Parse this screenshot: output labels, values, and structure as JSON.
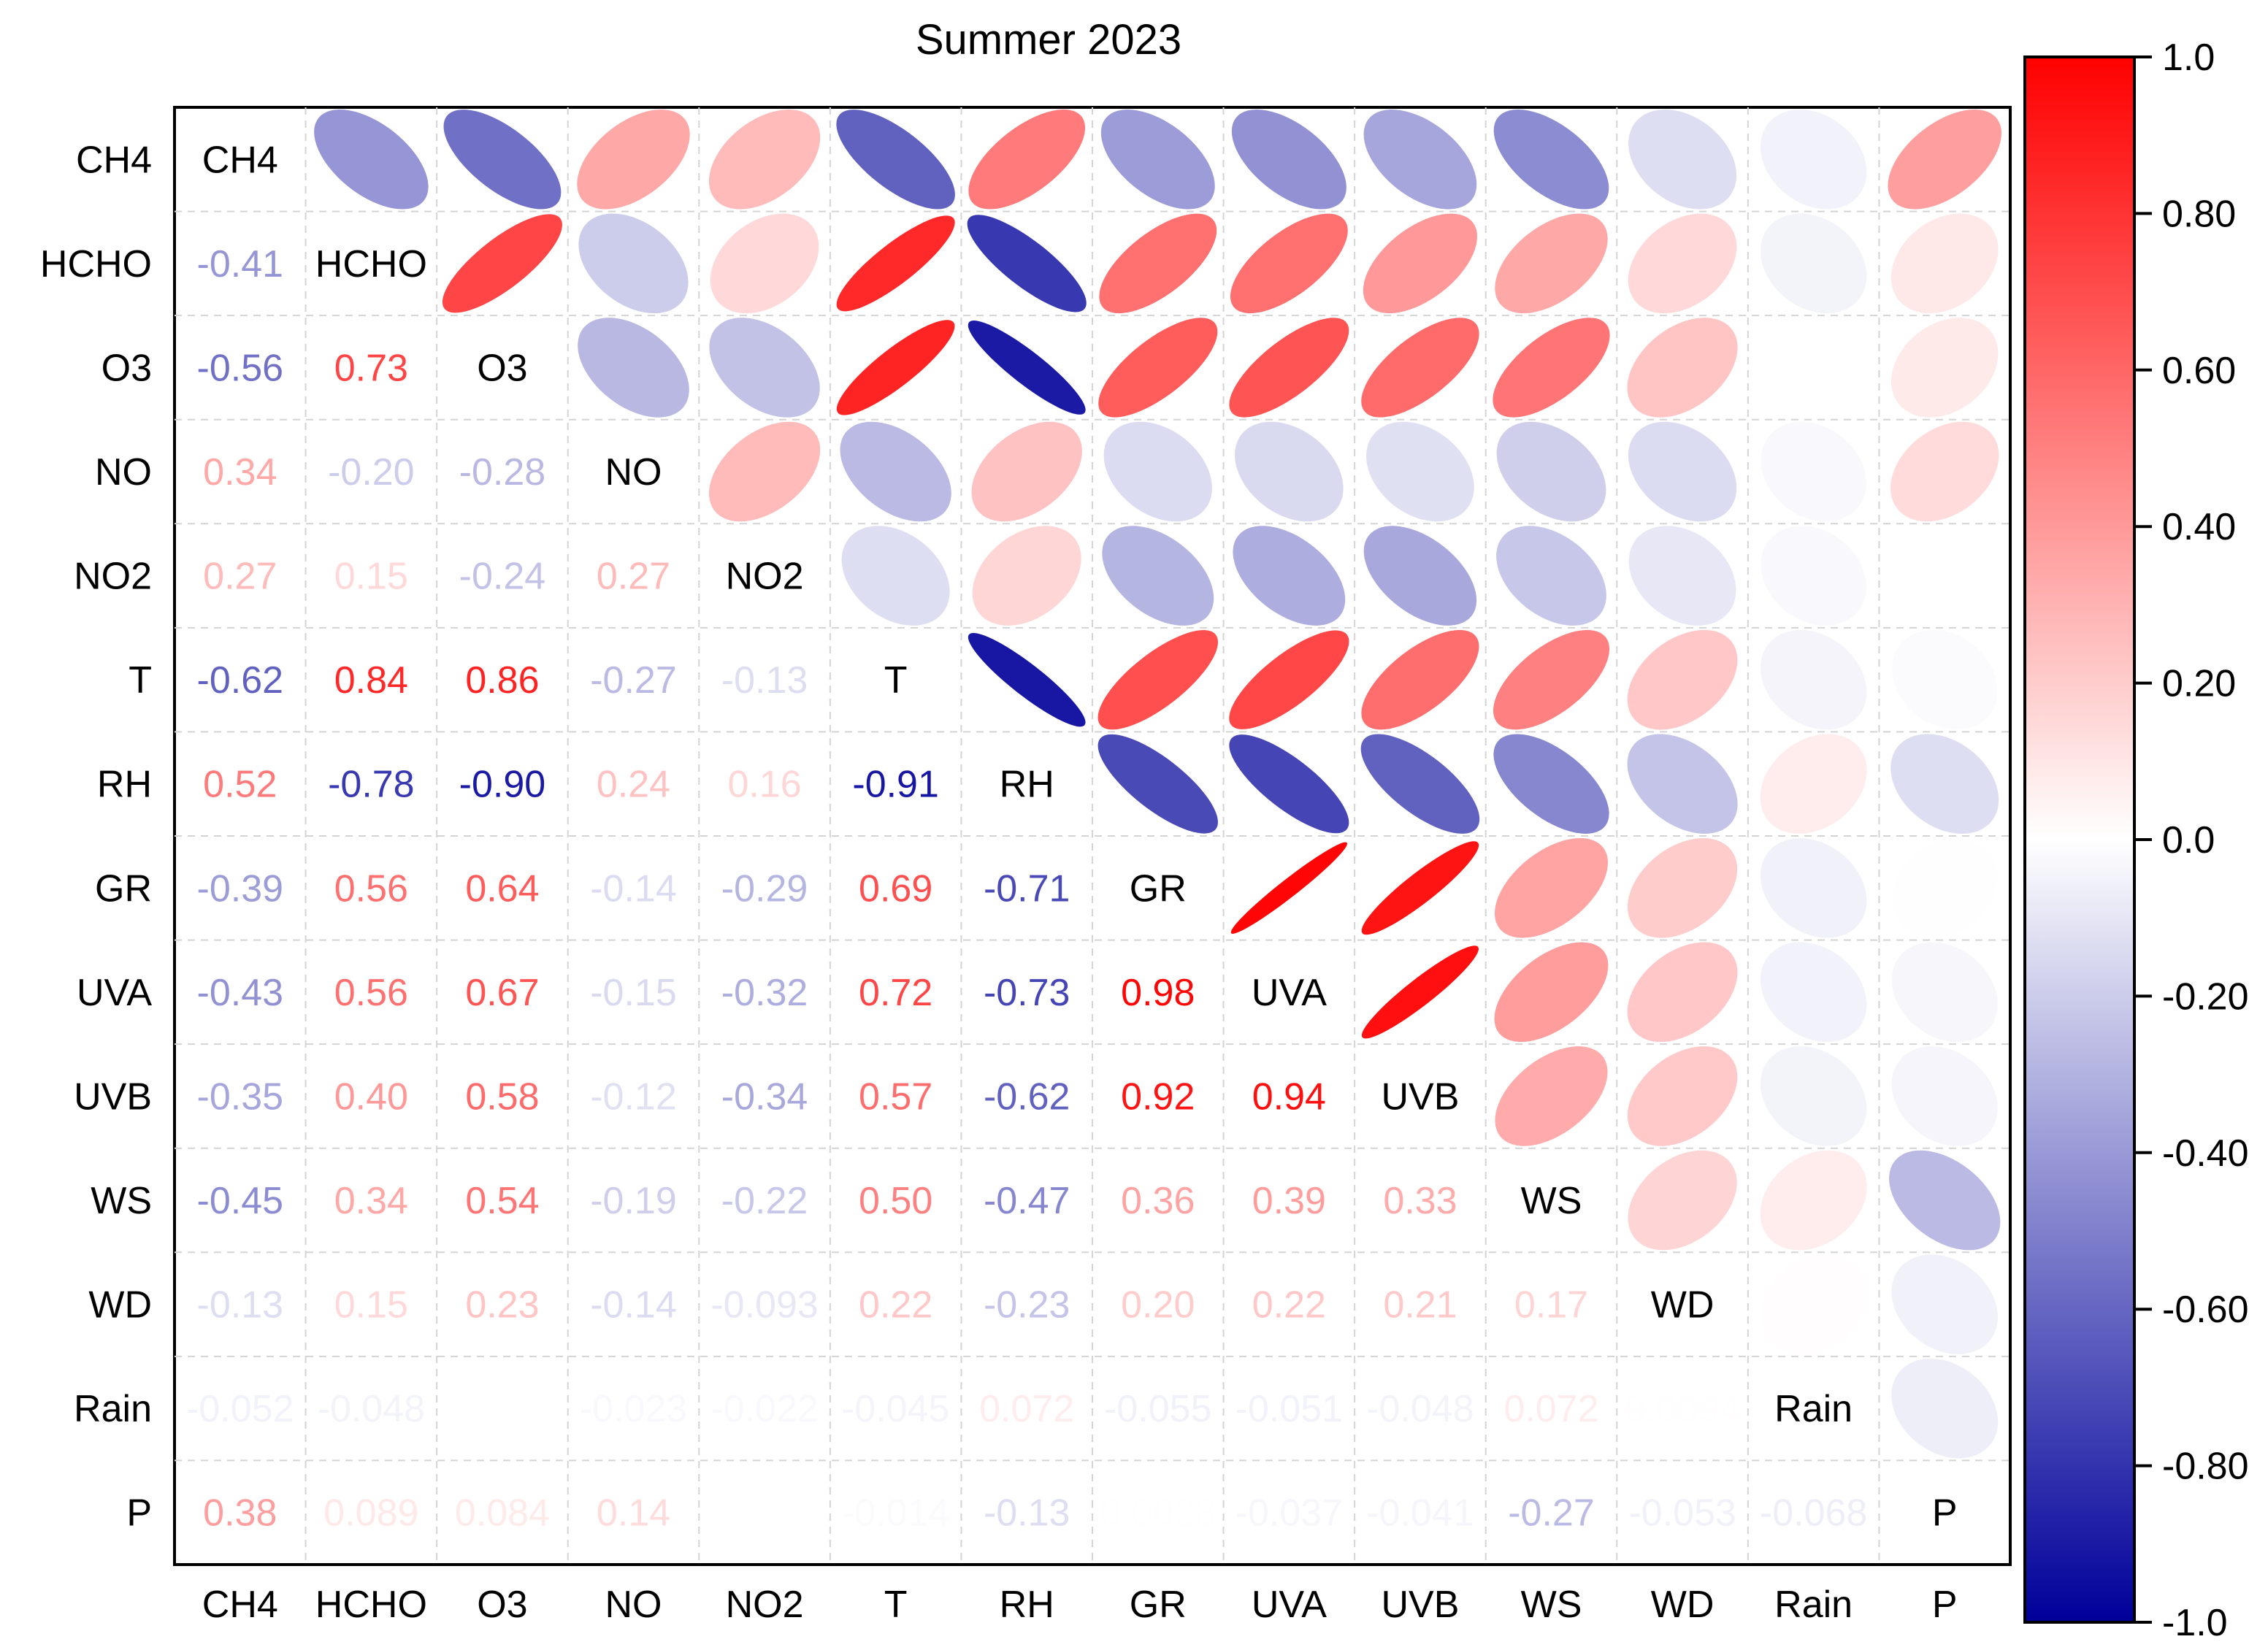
{
  "chart_data": {
    "type": "heatmap",
    "subtype": "correlation-ellipse-matrix",
    "title": "Summer 2023",
    "variables": [
      "CH4",
      "HCHO",
      "O3",
      "NO",
      "NO2",
      "T",
      "RH",
      "GR",
      "UVA",
      "UVB",
      "WS",
      "WD",
      "Rain",
      "P"
    ],
    "lower_labels": [
      [],
      [
        "-0.41"
      ],
      [
        "-0.56",
        "0.73"
      ],
      [
        "0.34",
        "-0.20",
        "-0.28"
      ],
      [
        "0.27",
        "0.15",
        "-0.24",
        "0.27"
      ],
      [
        "-0.62",
        "0.84",
        "0.86",
        "-0.27",
        "-0.13"
      ],
      [
        "0.52",
        "-0.78",
        "-0.90",
        "0.24",
        "0.16",
        "-0.91"
      ],
      [
        "-0.39",
        "0.56",
        "0.64",
        "-0.14",
        "-0.29",
        "0.69",
        "-0.71"
      ],
      [
        "-0.43",
        "0.56",
        "0.67",
        "-0.15",
        "-0.32",
        "0.72",
        "-0.73",
        "0.98"
      ],
      [
        "-0.35",
        "0.40",
        "0.58",
        "-0.12",
        "-0.34",
        "0.57",
        "-0.62",
        "0.92",
        "0.94"
      ],
      [
        "-0.45",
        "0.34",
        "0.54",
        "-0.19",
        "-0.22",
        "0.50",
        "-0.47",
        "0.36",
        "0.39",
        "0.33"
      ],
      [
        "-0.13",
        "0.15",
        "0.23",
        "-0.14",
        "-0.093",
        "0.22",
        "-0.23",
        "0.20",
        "0.22",
        "0.21",
        "0.17"
      ],
      [
        "-0.052",
        "-0.048",
        "0.0",
        "-0.023",
        "-0.022",
        "-0.045",
        "0.072",
        "-0.055",
        "-0.051",
        "-0.048",
        "0.072",
        "0.0094"
      ],
      [
        "0.38",
        "0.089",
        "0.084",
        "0.14",
        "0.0",
        "-0.014",
        "-0.13",
        "0.0028",
        "-0.037",
        "-0.041",
        "-0.27",
        "-0.053",
        "-0.068"
      ]
    ],
    "upper_values": [
      [
        null,
        -0.41,
        -0.56,
        0.34,
        0.27,
        -0.62,
        0.52,
        -0.39,
        -0.43,
        -0.35,
        -0.45,
        -0.13,
        -0.052,
        0.38
      ],
      [
        null,
        null,
        0.73,
        -0.2,
        0.15,
        0.84,
        -0.78,
        0.56,
        0.56,
        0.4,
        0.34,
        0.15,
        -0.048,
        0.089
      ],
      [
        null,
        null,
        null,
        -0.28,
        -0.24,
        0.86,
        -0.9,
        0.64,
        0.67,
        0.58,
        0.54,
        0.23,
        0.0,
        0.084
      ],
      [
        null,
        null,
        null,
        null,
        0.27,
        -0.27,
        0.24,
        -0.14,
        -0.15,
        -0.12,
        -0.19,
        -0.14,
        -0.023,
        0.14
      ],
      [
        null,
        null,
        null,
        null,
        null,
        -0.13,
        0.16,
        -0.29,
        -0.32,
        -0.34,
        -0.22,
        -0.093,
        -0.022,
        0.0
      ],
      [
        null,
        null,
        null,
        null,
        null,
        null,
        -0.91,
        0.69,
        0.72,
        0.57,
        0.5,
        0.22,
        -0.045,
        -0.014
      ],
      [
        null,
        null,
        null,
        null,
        null,
        null,
        null,
        -0.71,
        -0.73,
        -0.62,
        -0.47,
        -0.23,
        0.072,
        -0.13
      ],
      [
        null,
        null,
        null,
        null,
        null,
        null,
        null,
        null,
        0.98,
        0.92,
        0.36,
        0.2,
        -0.055,
        0.0028
      ],
      [
        null,
        null,
        null,
        null,
        null,
        null,
        null,
        null,
        null,
        0.94,
        0.39,
        0.22,
        -0.051,
        -0.037
      ],
      [
        null,
        null,
        null,
        null,
        null,
        null,
        null,
        null,
        null,
        null,
        0.33,
        0.21,
        -0.048,
        -0.041
      ],
      [
        null,
        null,
        null,
        null,
        null,
        null,
        null,
        null,
        null,
        null,
        null,
        0.17,
        0.072,
        -0.27
      ],
      [
        null,
        null,
        null,
        null,
        null,
        null,
        null,
        null,
        null,
        null,
        null,
        null,
        0.0094,
        -0.053
      ],
      [
        null,
        null,
        null,
        null,
        null,
        null,
        null,
        null,
        null,
        null,
        null,
        null,
        null,
        -0.068
      ],
      [
        null,
        null,
        null,
        null,
        null,
        null,
        null,
        null,
        null,
        null,
        null,
        null,
        null,
        null
      ]
    ],
    "colorbar": {
      "range": [
        -1.0,
        1.0
      ],
      "tick_labels": [
        "1.0",
        "0.80",
        "0.60",
        "0.40",
        "0.20",
        "0.0",
        "-0.20",
        "-0.40",
        "-0.60",
        "-0.80",
        "-1.0"
      ],
      "colors": {
        "negative": "#00009a",
        "zero": "#ffffff",
        "positive": "#ff0000"
      }
    },
    "grid": true
  }
}
